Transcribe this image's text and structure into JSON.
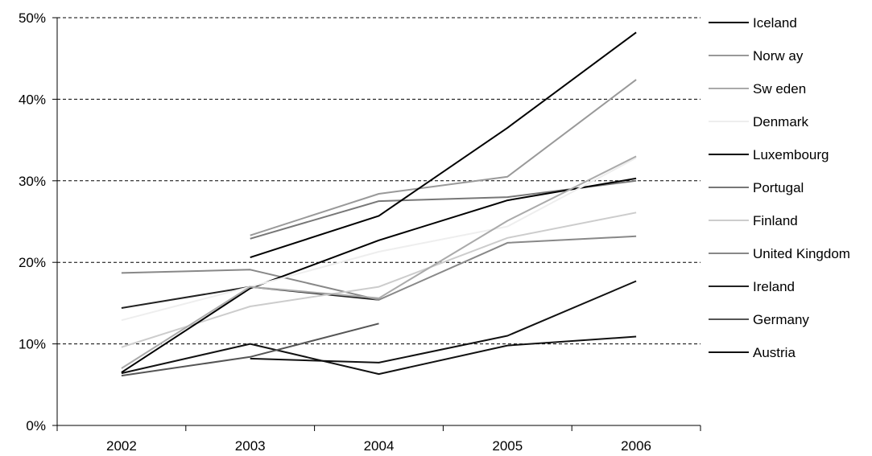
{
  "chart_data": {
    "type": "line",
    "title": "",
    "xlabel": "",
    "ylabel": "",
    "categories": [
      "2002",
      "2003",
      "2004",
      "2005",
      "2006"
    ],
    "yticks": [
      "0%",
      "10%",
      "20%",
      "30%",
      "40%",
      "50%"
    ],
    "ylim": [
      0,
      50
    ],
    "grid": "horizontal dashed",
    "legend": "right",
    "series": [
      {
        "name": "Iceland",
        "color": "#000000",
        "values": [
          null,
          20.6,
          25.7,
          36.5,
          48.2
        ]
      },
      {
        "name": "Norw ay",
        "color": "#999999",
        "values": [
          null,
          23.3,
          28.4,
          30.5,
          42.4
        ]
      },
      {
        "name": "Sw eden",
        "color": "#aaaaaa",
        "values": [
          7.0,
          17.0,
          15.6,
          25.1,
          33.0
        ]
      },
      {
        "name": "Denmark",
        "color": "#eeeeee",
        "values": [
          12.9,
          17.0,
          21.3,
          24.4,
          32.8
        ]
      },
      {
        "name": "Luxembourg",
        "color": "#000000",
        "values": [
          6.5,
          16.8,
          22.7,
          27.6,
          30.3
        ]
      },
      {
        "name": "Portugal",
        "color": "#777777",
        "values": [
          null,
          22.9,
          27.5,
          28.0,
          30.0
        ]
      },
      {
        "name": "Finland",
        "color": "#cccccc",
        "values": [
          9.6,
          14.6,
          17.0,
          23.0,
          26.1
        ]
      },
      {
        "name": "United Kingdom",
        "color": "#888888",
        "values": [
          18.7,
          19.1,
          15.4,
          22.4,
          23.2
        ]
      },
      {
        "name": "Ireland",
        "color": "#222222",
        "values": [
          14.4,
          17.0,
          15.4,
          null,
          17.7
        ]
      },
      {
        "name": "Germany",
        "color": "#555555",
        "values": [
          6.1,
          8.4,
          12.5,
          null,
          17.2
        ]
      },
      {
        "name": "Austria",
        "color": "#111111",
        "values": [
          6.4,
          10.0,
          6.3,
          9.8,
          10.9
        ]
      },
      {
        "name": "",
        "color": "#111111",
        "values": [
          null,
          8.2,
          7.7,
          11.0,
          17.7
        ]
      }
    ]
  }
}
